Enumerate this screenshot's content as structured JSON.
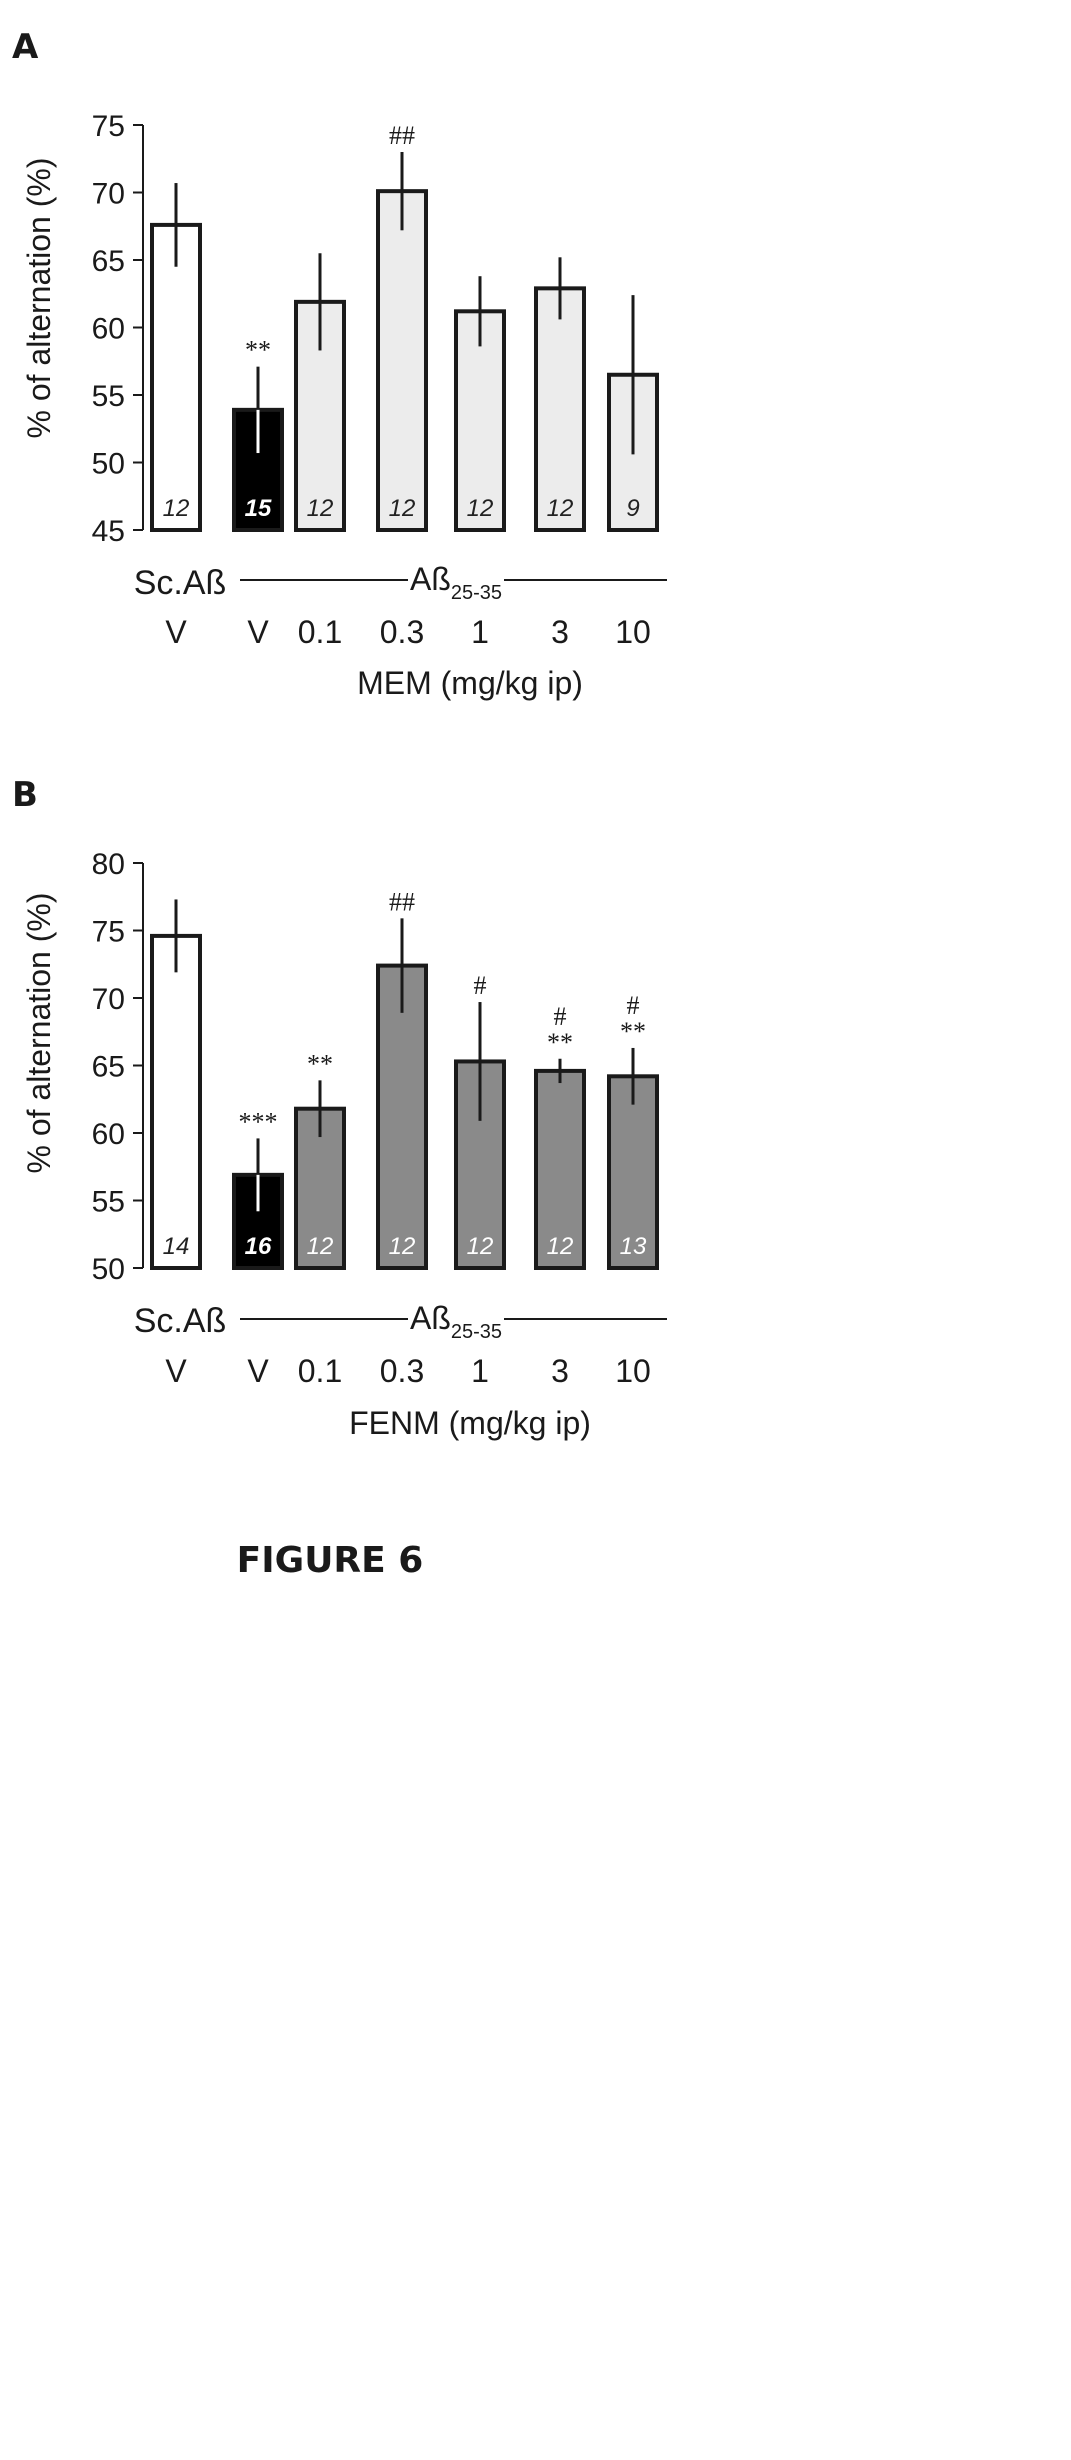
{
  "figure_title": "FIGURE 6",
  "chart_data": [
    {
      "panel": "A",
      "type": "bar",
      "ylabel": "% of alternation (%)",
      "ylim": [
        45,
        75
      ],
      "yticks": [
        45,
        50,
        55,
        60,
        65,
        70,
        75
      ],
      "categories": [
        "V",
        "V",
        "0.1",
        "0.3",
        "1",
        "3",
        "10"
      ],
      "values": [
        67.6,
        53.9,
        61.9,
        70.1,
        61.2,
        62.9,
        56.5
      ],
      "error": [
        3.1,
        3.2,
        3.6,
        2.9,
        2.6,
        2.3,
        5.9
      ],
      "n": [
        "12",
        "15",
        "12",
        "12",
        "12",
        "12",
        "9"
      ],
      "significance": [
        [],
        [
          "**"
        ],
        [],
        [
          "##"
        ],
        [],
        [],
        []
      ],
      "fills": [
        "#ffffff",
        "#000000",
        "#ececec",
        "#ececec",
        "#ececec",
        "#ececec",
        "#ececec"
      ],
      "group_control": "Sc.Aß",
      "group_treatment": {
        "main": "Aß",
        "sub": "25-35"
      },
      "drug_label": "MEM (mg/kg ip)"
    },
    {
      "panel": "B",
      "type": "bar",
      "ylabel": "% of alternation (%)",
      "ylim": [
        50,
        80
      ],
      "yticks": [
        50,
        55,
        60,
        65,
        70,
        75,
        80
      ],
      "categories": [
        "V",
        "V",
        "0.1",
        "0.3",
        "1",
        "3",
        "10"
      ],
      "values": [
        74.6,
        56.9,
        61.8,
        72.4,
        65.3,
        64.6,
        64.2
      ],
      "error": [
        2.7,
        2.7,
        2.1,
        3.5,
        4.4,
        0.9,
        2.1
      ],
      "n": [
        "14",
        "16",
        "12",
        "12",
        "12",
        "12",
        "13"
      ],
      "significance": [
        [],
        [
          "***"
        ],
        [
          "**"
        ],
        [
          "##"
        ],
        [
          "#"
        ],
        [
          "#",
          "**"
        ],
        [
          "#",
          "**"
        ]
      ],
      "fills": [
        "#ffffff",
        "#000000",
        "#8a8a8a",
        "#8a8a8a",
        "#8a8a8a",
        "#8a8a8a",
        "#8a8a8a"
      ],
      "group_control": "Sc.Aß",
      "group_treatment": {
        "main": "Aß",
        "sub": "25-35"
      },
      "drug_label": "FENM (mg/kg ip)"
    }
  ]
}
